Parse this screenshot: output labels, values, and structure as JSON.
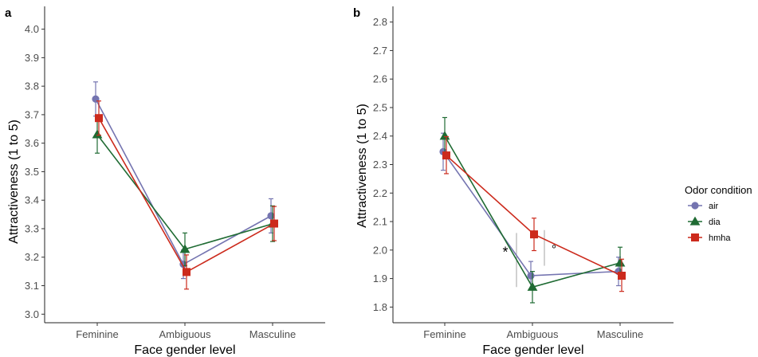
{
  "legend": {
    "title": "Odor condition",
    "placement": "right"
  },
  "series_style": {
    "air": {
      "color": "#7474b0",
      "marker": "circle"
    },
    "dia": {
      "color": "#1f6b33",
      "marker": "triangle"
    },
    "hmha": {
      "color": "#cc2a1c",
      "marker": "square"
    }
  },
  "chart_data": [
    {
      "panel": "a",
      "type": "line",
      "xlabel": "Face gender level",
      "ylabel": "Attractiveness (1 to 5)",
      "categories": [
        "Feminine",
        "Ambiguous",
        "Masculine"
      ],
      "ylim": [
        2.97,
        4.08
      ],
      "yticks": [
        "3.0",
        "3.1",
        "3.2",
        "3.3",
        "3.4",
        "3.5",
        "3.6",
        "3.7",
        "3.8",
        "3.9",
        "4.0"
      ],
      "grid": false,
      "series": [
        {
          "name": "air",
          "values": [
            3.755,
            3.175,
            3.345
          ],
          "err": [
            [
              3.695,
              3.815
            ],
            [
              3.125,
              3.225
            ],
            [
              3.285,
              3.405
            ]
          ]
        },
        {
          "name": "dia",
          "values": [
            3.63,
            3.228,
            3.317
          ],
          "err": [
            [
              3.565,
              3.695
            ],
            [
              3.17,
              3.285
            ],
            [
              3.255,
              3.38
            ]
          ]
        },
        {
          "name": "hmha",
          "values": [
            3.688,
            3.148,
            3.318
          ],
          "err": [
            [
              3.628,
              3.748
            ],
            [
              3.088,
              3.208
            ],
            [
              3.258,
              3.378
            ]
          ]
        }
      ],
      "annotations": []
    },
    {
      "panel": "b",
      "type": "line",
      "xlabel": "Face gender level",
      "ylabel": "Attractiveness (1 to 5)",
      "categories": [
        "Feminine",
        "Ambiguous",
        "Masculine"
      ],
      "ylim": [
        1.745,
        2.855
      ],
      "yticks": [
        "1.8",
        "1.9",
        "2.0",
        "2.1",
        "2.2",
        "2.3",
        "2.4",
        "2.5",
        "2.6",
        "2.7",
        "2.8"
      ],
      "grid": false,
      "series": [
        {
          "name": "air",
          "values": [
            2.345,
            1.91,
            1.925
          ],
          "err": [
            [
              2.28,
              2.41
            ],
            [
              1.86,
              1.96
            ],
            [
              1.875,
              1.975
            ]
          ]
        },
        {
          "name": "dia",
          "values": [
            2.4,
            1.87,
            1.955
          ],
          "err": [
            [
              2.33,
              2.465
            ],
            [
              1.815,
              1.925
            ],
            [
              1.9,
              2.01
            ]
          ]
        },
        {
          "name": "hmha",
          "values": [
            2.332,
            2.055,
            1.91
          ],
          "err": [
            [
              2.268,
              2.398
            ],
            [
              1.998,
              2.112
            ],
            [
              1.855,
              1.968
            ]
          ]
        }
      ],
      "annotations": [
        "*",
        "°"
      ]
    }
  ]
}
